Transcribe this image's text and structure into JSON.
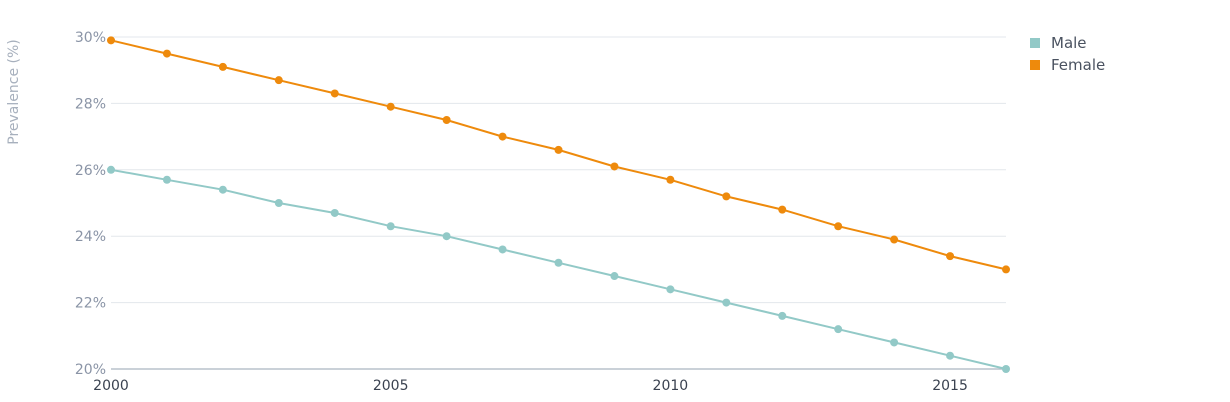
{
  "chart_data": {
    "type": "line",
    "ylabel": "Prevalence (%)",
    "xlabel": "",
    "x": [
      2000,
      2001,
      2002,
      2003,
      2004,
      2005,
      2006,
      2007,
      2008,
      2009,
      2010,
      2011,
      2012,
      2013,
      2014,
      2015,
      2016
    ],
    "xlim": [
      2000,
      2016
    ],
    "ylim": [
      20,
      30
    ],
    "x_ticks": [
      2000,
      2005,
      2010,
      2015
    ],
    "x_tick_labels": [
      "2000",
      "2005",
      "2010",
      "2015"
    ],
    "y_ticks": [
      20,
      22,
      24,
      26,
      28,
      30
    ],
    "y_tick_labels": [
      "20%",
      "22%",
      "24%",
      "26%",
      "28%",
      "30%"
    ],
    "grid": true,
    "legend_position": "top-right",
    "series": [
      {
        "name": "Male",
        "color": "#92c9c7",
        "values": [
          26.0,
          25.7,
          25.4,
          25.0,
          24.7,
          24.3,
          24.0,
          23.6,
          23.2,
          22.8,
          22.4,
          22.0,
          21.6,
          21.2,
          20.8,
          20.4,
          20.0
        ]
      },
      {
        "name": "Female",
        "color": "#ee8a0c",
        "values": [
          29.9,
          29.5,
          29.1,
          28.7,
          28.3,
          27.9,
          27.5,
          27.0,
          26.6,
          26.1,
          25.7,
          25.2,
          24.8,
          24.3,
          23.9,
          23.4,
          23.0
        ]
      }
    ]
  }
}
